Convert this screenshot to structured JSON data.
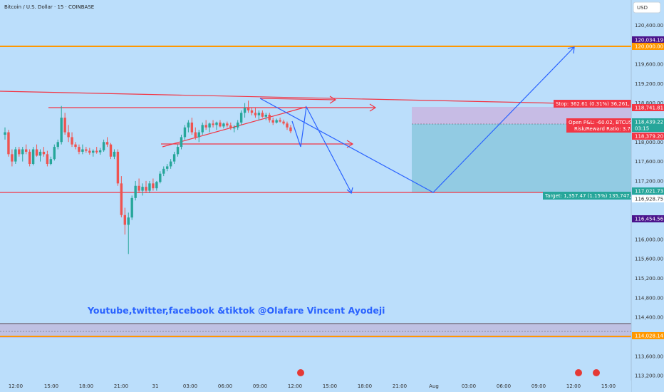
{
  "header": {
    "title": "Bitcoin / U.S. Dollar · 15 · COINBASE",
    "currency": "USD"
  },
  "watermark": "Youtube,twitter,facebook &tiktok @Olafare Vincent Ayodeji",
  "colors": {
    "background": "#bbdefb",
    "up": "#26a69a",
    "down": "#ef5350",
    "trendline": "#f23645",
    "projection": "#2962ff",
    "orange": "#ff9800",
    "stop_zone": "#c9b6e0",
    "target_zone": "#8ec9e0"
  },
  "chart_data": {
    "type": "candlestick",
    "symbol": "BTCUSD",
    "timeframe": "15",
    "exchange": "COINBASE",
    "ylim": [
      113100,
      120800
    ],
    "x_tick_labels": [
      "12:00",
      "15:00",
      "18:00",
      "21:00",
      "31",
      "03:00",
      "06:00",
      "09:00",
      "12:00",
      "15:00",
      "18:00",
      "21:00",
      "Aug",
      "03:00",
      "06:00",
      "09:00",
      "12:00",
      "15:00"
    ],
    "y_tick_labels": [
      113200,
      113600,
      114000,
      114400,
      114800,
      115200,
      115600,
      116000,
      116400,
      116800,
      117200,
      117600,
      118000,
      118400,
      118800,
      119200,
      119600,
      120000,
      120400
    ],
    "candles_approx": [
      [
        118150,
        118300,
        118050,
        118200
      ],
      [
        118200,
        118250,
        117700,
        117750
      ],
      [
        117750,
        117850,
        117500,
        117600
      ],
      [
        117600,
        117900,
        117550,
        117850
      ],
      [
        117850,
        117900,
        117700,
        117750
      ],
      [
        117750,
        117900,
        117600,
        117850
      ],
      [
        117850,
        117950,
        117750,
        117800
      ],
      [
        117800,
        117850,
        117500,
        117550
      ],
      [
        117550,
        117900,
        117520,
        117850
      ],
      [
        117850,
        117950,
        117700,
        117720
      ],
      [
        117720,
        117850,
        117600,
        117800
      ],
      [
        117800,
        117900,
        117700,
        117750
      ],
      [
        117750,
        117820,
        117500,
        117550
      ],
      [
        117550,
        117700,
        117520,
        117650
      ],
      [
        117650,
        117950,
        117620,
        117900
      ],
      [
        117900,
        118050,
        117850,
        118000
      ],
      [
        118000,
        118741,
        117950,
        118500
      ],
      [
        118500,
        118600,
        118150,
        118200
      ],
      [
        118200,
        118350,
        118000,
        118100
      ],
      [
        118100,
        118200,
        117900,
        117950
      ],
      [
        117950,
        118000,
        117850,
        117900
      ],
      [
        117900,
        117950,
        117750,
        117800
      ],
      [
        117800,
        117950,
        117750,
        117850
      ],
      [
        117850,
        117900,
        117780,
        117820
      ],
      [
        117820,
        117880,
        117740,
        117780
      ],
      [
        117780,
        117850,
        117700,
        117820
      ],
      [
        117820,
        117900,
        117760,
        117790
      ],
      [
        117790,
        117880,
        117740,
        117830
      ],
      [
        117830,
        118050,
        117800,
        118000
      ],
      [
        118000,
        118100,
        117900,
        117950
      ],
      [
        117950,
        117980,
        117650,
        117700
      ],
      [
        117700,
        117850,
        117650,
        117800
      ],
      [
        117800,
        117850,
        117100,
        117150
      ],
      [
        117150,
        117300,
        116454,
        116500
      ],
      [
        116500,
        116650,
        116100,
        116300
      ],
      [
        116300,
        116550,
        115700,
        116450
      ],
      [
        116450,
        116900,
        116400,
        116850
      ],
      [
        116850,
        117200,
        116800,
        117100
      ],
      [
        117100,
        117250,
        116950,
        117000
      ],
      [
        117000,
        117150,
        116900,
        117080
      ],
      [
        117080,
        117200,
        116950,
        117000
      ],
      [
        117000,
        117200,
        116950,
        117150
      ],
      [
        117150,
        117250,
        117000,
        117050
      ],
      [
        117050,
        117200,
        117000,
        117180
      ],
      [
        117180,
        117400,
        117150,
        117350
      ],
      [
        117350,
        117500,
        117300,
        117450
      ],
      [
        117450,
        117550,
        117400,
        117500
      ],
      [
        117500,
        117650,
        117450,
        117600
      ],
      [
        117600,
        117800,
        117550,
        117750
      ],
      [
        117750,
        117950,
        117700,
        117900
      ],
      [
        117900,
        118150,
        117850,
        118100
      ],
      [
        118100,
        118350,
        118050,
        118300
      ],
      [
        118300,
        118450,
        118200,
        118400
      ],
      [
        118400,
        118500,
        118150,
        118200
      ],
      [
        118200,
        118300,
        118050,
        118100
      ],
      [
        118100,
        118250,
        118000,
        118200
      ],
      [
        118200,
        118400,
        118150,
        118350
      ],
      [
        118350,
        118450,
        118250,
        118300
      ],
      [
        118300,
        118400,
        118200,
        118380
      ],
      [
        118380,
        118450,
        118300,
        118350
      ],
      [
        118350,
        118420,
        118250,
        118400
      ],
      [
        118400,
        118450,
        118300,
        118320
      ],
      [
        118320,
        118400,
        118280,
        118380
      ],
      [
        118380,
        118420,
        118300,
        118340
      ],
      [
        118340,
        118400,
        118250,
        118280
      ],
      [
        118280,
        118350,
        118200,
        118300
      ],
      [
        118300,
        118450,
        118250,
        118400
      ],
      [
        118400,
        118650,
        118350,
        118600
      ],
      [
        118600,
        118800,
        118500,
        118700
      ],
      [
        118700,
        118850,
        118600,
        118650
      ],
      [
        118650,
        118700,
        118550,
        118600
      ],
      [
        118600,
        118700,
        118500,
        118550
      ],
      [
        118550,
        118650,
        118450,
        118600
      ],
      [
        118600,
        118650,
        118500,
        118520
      ],
      [
        118520,
        118600,
        118450,
        118560
      ],
      [
        118560,
        118600,
        118400,
        118450
      ],
      [
        118450,
        118500,
        118350,
        118400
      ],
      [
        118400,
        118480,
        118380,
        118450
      ],
      [
        118450,
        118500,
        118400,
        118420
      ],
      [
        118420,
        118460,
        118350,
        118380
      ],
      [
        118380,
        118420,
        118250,
        118300
      ],
      [
        118300,
        118350,
        118180,
        118220
      ]
    ],
    "horizontal_levels": [
      120000,
      113950
    ],
    "position_tool": {
      "entry": 118439.22,
      "stop_label": "Stop: 362.61 (0.31%) 36,261, Amo",
      "target_label": "Target: 1,357.47 (1.15%) 135,747, Am",
      "info": [
        "Open P&L: -60.02, BTCUSD",
        "Risk/Reward Ratio: 3.74"
      ]
    },
    "price_tags": [
      {
        "text": "120,034.19",
        "bg": "#4a148c"
      },
      {
        "text": "120,000.00",
        "bg": "#ff9800"
      },
      {
        "text": "118,741.81",
        "bg": "#f23645"
      },
      {
        "text": "118,439.22",
        "bg": "#26a69a"
      },
      {
        "text": "03:15",
        "bg": "#26a69a"
      },
      {
        "text": "118,379.20",
        "bg": "#f23645"
      },
      {
        "text": "117,021.73",
        "bg": "#26a69a"
      },
      {
        "text": "116,928.75",
        "bg": "#ffffff"
      },
      {
        "text": "116,454.56",
        "bg": "#4a148c"
      },
      {
        "text": "114,028.14",
        "bg": "#ff9800"
      }
    ]
  }
}
